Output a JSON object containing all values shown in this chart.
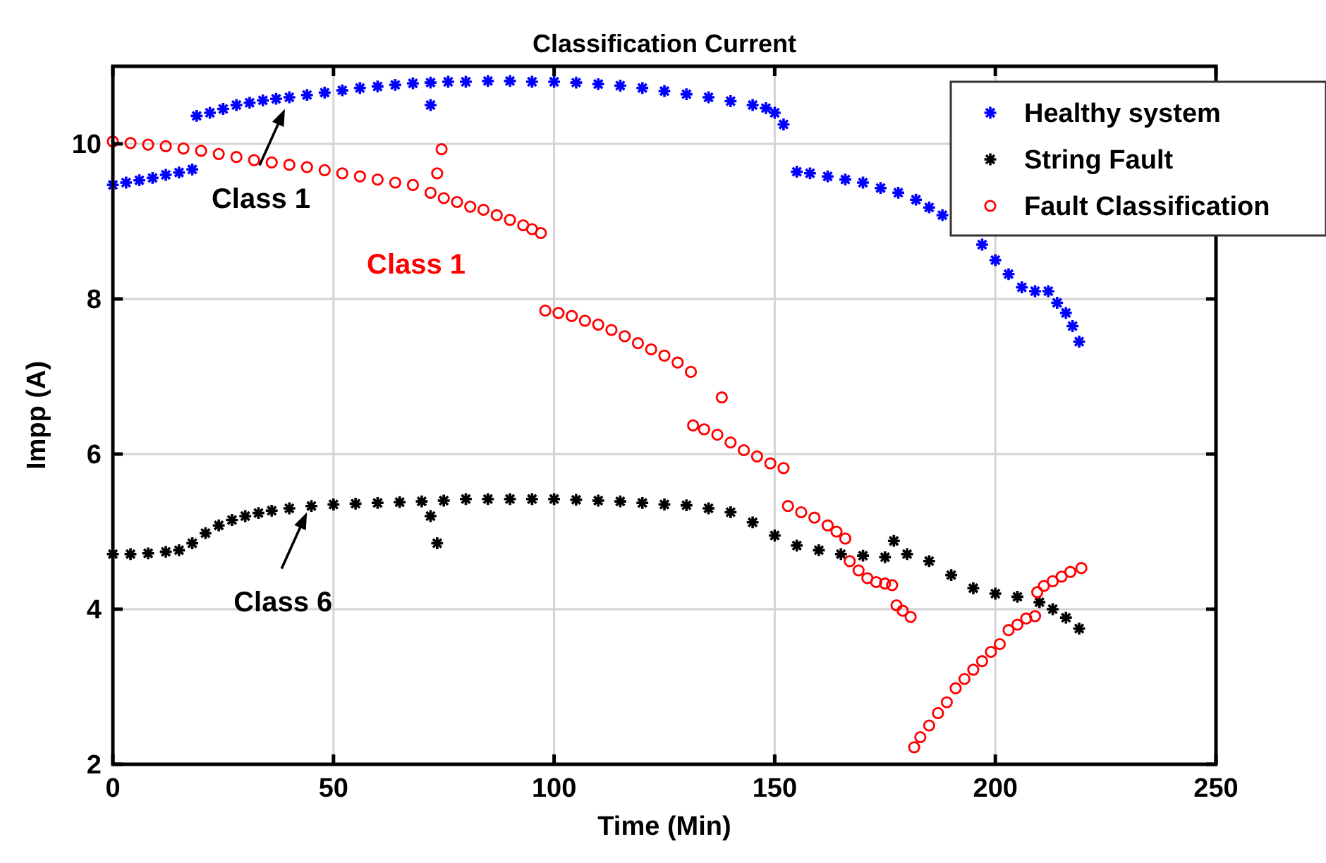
{
  "chart_data": {
    "type": "scatter",
    "title": "Classification Current",
    "xlabel": "Time (Min)",
    "ylabel": "Impp (A)",
    "xlim": [
      0,
      250
    ],
    "xticks": [
      0,
      50,
      100,
      150,
      200,
      250
    ],
    "ylim": [
      2,
      11
    ],
    "yticks": [
      2,
      4,
      6,
      8,
      10
    ],
    "grid": true,
    "legend": "top right",
    "annotations": [
      {
        "text": "Class 1",
        "x": 39,
        "y": 10.45
      },
      "Class 1",
      {
        "text": "Class 6",
        "x": 44,
        "y": 5.25
      }
    ],
    "series": [
      {
        "name": "Healthy system",
        "color": "#0000ff",
        "marker": "cross",
        "x": [
          0,
          3,
          6,
          9,
          12,
          15,
          18,
          19,
          22,
          25,
          28,
          31,
          34,
          37,
          40,
          44,
          48,
          52,
          56,
          60,
          64,
          68,
          72,
          72,
          76,
          80,
          85,
          90,
          95,
          100,
          105,
          110,
          115,
          120,
          125,
          130,
          135,
          140,
          145,
          148,
          150,
          152,
          155,
          158,
          162,
          166,
          170,
          174,
          178,
          182,
          185,
          188,
          197,
          200,
          203,
          206,
          209,
          212,
          214,
          216,
          217.5,
          219
        ],
        "values": [
          9.47,
          9.5,
          9.53,
          9.56,
          9.6,
          9.63,
          9.67,
          10.36,
          10.4,
          10.45,
          10.5,
          10.53,
          10.56,
          10.58,
          10.6,
          10.63,
          10.66,
          10.69,
          10.72,
          10.74,
          10.76,
          10.78,
          10.79,
          10.5,
          10.8,
          10.8,
          10.81,
          10.81,
          10.8,
          10.8,
          10.79,
          10.77,
          10.75,
          10.72,
          10.68,
          10.64,
          10.6,
          10.55,
          10.5,
          10.46,
          10.4,
          10.25,
          9.64,
          9.62,
          9.58,
          9.54,
          9.5,
          9.43,
          9.37,
          9.28,
          9.18,
          9.08,
          8.7,
          8.5,
          8.32,
          8.15,
          8.1,
          8.1,
          7.95,
          7.82,
          7.65,
          7.45
        ]
      },
      {
        "name": "String Fault",
        "color": "#000000",
        "marker": "cross",
        "x": [
          0,
          4,
          8,
          12,
          15,
          18,
          21,
          24,
          27,
          30,
          33,
          36,
          40,
          45,
          50,
          55,
          60,
          65,
          70,
          72,
          73.5,
          75,
          80,
          85,
          90,
          95,
          100,
          105,
          110,
          115,
          120,
          125,
          130,
          135,
          140,
          145,
          150,
          155,
          160,
          165,
          170,
          175,
          177,
          180,
          185,
          190,
          195,
          200,
          205,
          210,
          213,
          216,
          219
        ],
        "values": [
          4.71,
          4.71,
          4.72,
          4.74,
          4.76,
          4.85,
          4.98,
          5.08,
          5.15,
          5.2,
          5.24,
          5.27,
          5.3,
          5.33,
          5.35,
          5.36,
          5.37,
          5.38,
          5.39,
          5.2,
          4.85,
          5.4,
          5.42,
          5.42,
          5.42,
          5.42,
          5.42,
          5.41,
          5.4,
          5.39,
          5.37,
          5.35,
          5.34,
          5.3,
          5.25,
          5.12,
          4.95,
          4.82,
          4.76,
          4.71,
          4.69,
          4.67,
          4.88,
          4.71,
          4.62,
          4.44,
          4.27,
          4.2,
          4.16,
          4.09,
          4.0,
          3.89,
          3.75
        ]
      },
      {
        "name": "Fault Classification",
        "color": "#ff0000",
        "marker": "circle",
        "x": [
          0,
          4,
          8,
          12,
          16,
          20,
          24,
          28,
          32,
          36,
          40,
          44,
          48,
          52,
          56,
          60,
          64,
          68,
          72,
          73.5,
          74.5,
          75,
          78,
          81,
          84,
          87,
          90,
          93,
          95,
          97,
          98,
          101,
          104,
          107,
          110,
          113,
          116,
          119,
          122,
          125,
          128,
          131,
          131.5,
          134,
          137,
          138,
          140,
          143,
          146,
          149,
          152,
          153,
          156,
          159,
          162,
          164,
          166,
          167,
          169,
          171,
          173,
          175,
          176.6,
          177.6,
          179,
          180.8,
          181.6,
          183,
          185,
          187,
          189,
          191,
          193,
          195,
          197,
          199,
          201,
          203,
          205,
          207,
          209,
          209.5,
          211,
          213,
          215,
          217,
          219.5
        ],
        "values": [
          10.03,
          10.01,
          9.99,
          9.97,
          9.94,
          9.91,
          9.87,
          9.83,
          9.79,
          9.76,
          9.73,
          9.7,
          9.66,
          9.62,
          9.58,
          9.54,
          9.5,
          9.47,
          9.37,
          9.62,
          9.93,
          9.3,
          9.25,
          9.19,
          9.15,
          9.08,
          9.02,
          8.95,
          8.9,
          8.85,
          7.85,
          7.82,
          7.78,
          7.72,
          7.67,
          7.6,
          7.52,
          7.43,
          7.35,
          7.27,
          7.18,
          7.06,
          6.37,
          6.32,
          6.25,
          6.73,
          6.15,
          6.05,
          5.97,
          5.88,
          5.82,
          5.33,
          5.25,
          5.18,
          5.08,
          5.0,
          4.91,
          4.62,
          4.5,
          4.4,
          4.35,
          4.33,
          4.31,
          4.05,
          3.98,
          3.9,
          2.22,
          2.35,
          2.5,
          2.66,
          2.8,
          2.98,
          3.1,
          3.22,
          3.33,
          3.45,
          3.55,
          3.73,
          3.8,
          3.88,
          3.91,
          4.22,
          4.3,
          4.36,
          4.42,
          4.48,
          4.53
        ]
      }
    ]
  }
}
